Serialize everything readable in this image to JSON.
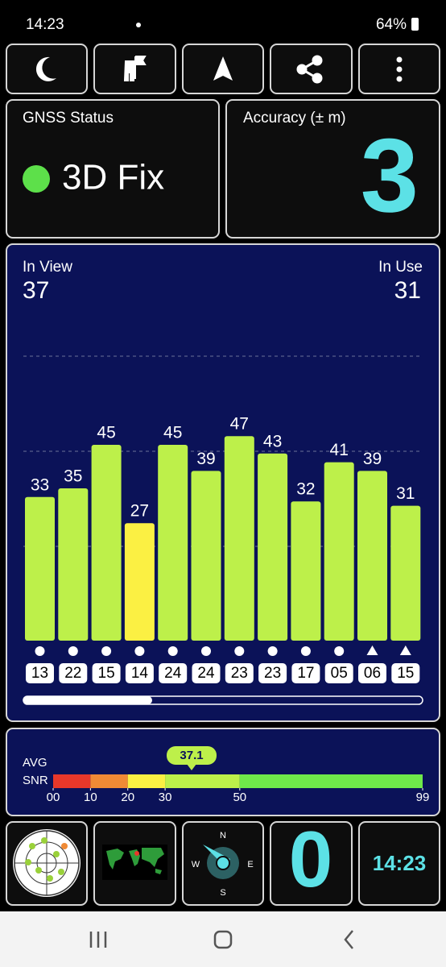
{
  "status_bar": {
    "time": "14:23",
    "battery": "64%"
  },
  "gnss_status": {
    "title": "GNSS Status",
    "fix": "3D Fix"
  },
  "accuracy": {
    "title": "Accuracy (± m)",
    "value": "3"
  },
  "satellites": {
    "in_view_label": "In View",
    "in_view": "37",
    "in_use_label": "In Use",
    "in_use": "31",
    "chart": {
      "type": "bar",
      "ylim": [
        0,
        70
      ],
      "values": [
        33,
        35,
        45,
        27,
        45,
        39,
        47,
        43,
        32,
        41,
        39,
        31
      ],
      "ids": [
        "13",
        "22",
        "15",
        "14",
        "24",
        "24",
        "23",
        "23",
        "17",
        "05",
        "06",
        "15"
      ],
      "colors": [
        "#bdf04a",
        "#bdf04a",
        "#bdf04a",
        "#fbf043",
        "#bdf04a",
        "#bdf04a",
        "#bdf04a",
        "#bdf04a",
        "#bdf04a",
        "#bdf04a",
        "#bdf04a",
        "#bdf04a"
      ],
      "markers": [
        "circle",
        "circle",
        "circle",
        "circle",
        "circle",
        "circle",
        "circle",
        "circle",
        "circle",
        "circle",
        "triangle",
        "triangle"
      ]
    }
  },
  "snr": {
    "avg_label": "AVG",
    "snr_label": "SNR",
    "avg": 37.1,
    "xlim": [
      0,
      99
    ],
    "ticks": [
      {
        "value": 0,
        "label": "00"
      },
      10,
      20,
      30,
      50,
      99
    ],
    "bands": [
      {
        "from": 0,
        "to": 10,
        "color": "#e8382a"
      },
      {
        "from": 10,
        "to": 20,
        "color": "#f08a35"
      },
      {
        "from": 20,
        "to": 30,
        "color": "#fbf043"
      },
      {
        "from": 30,
        "to": 50,
        "color": "#bdf04a"
      },
      {
        "from": 50,
        "to": 99,
        "color": "#6fe84a"
      }
    ]
  },
  "tiles": {
    "compass": [
      "N",
      "E",
      "S",
      "W"
    ],
    "speed": "0",
    "clock": "14:23"
  }
}
